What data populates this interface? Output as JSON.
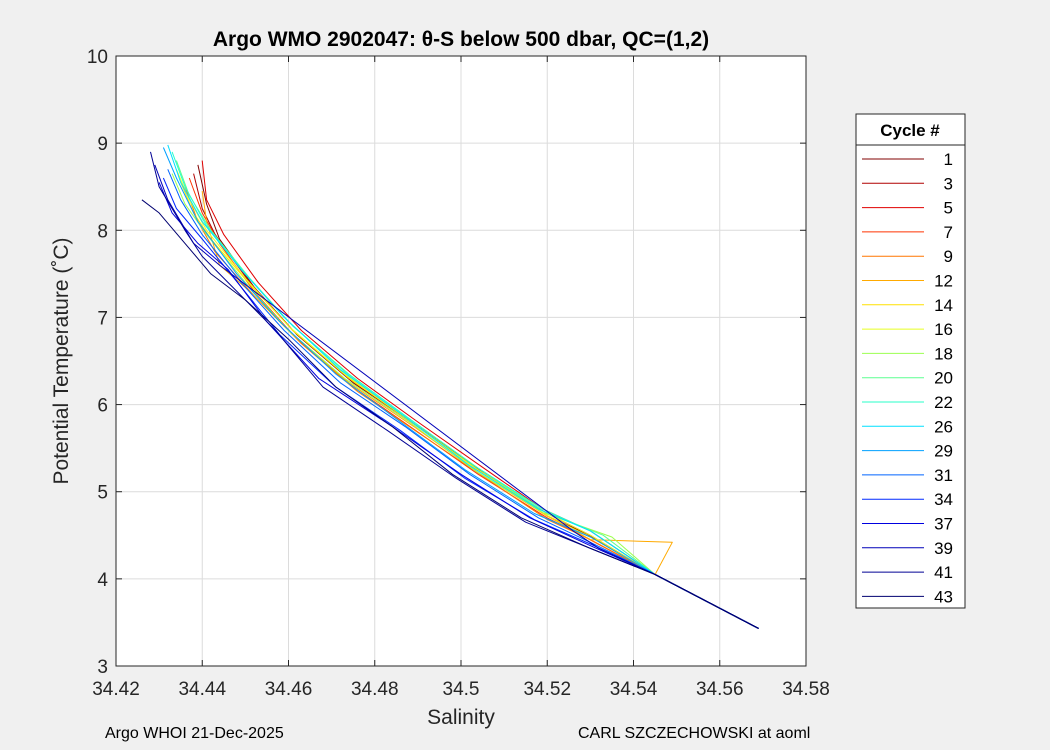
{
  "chart_data": {
    "type": "line",
    "title": "Argo WMO 2902047: θ-S below 500 dbar,  QC=(1,2)",
    "xlabel": "Salinity",
    "ylabel": "Potential Temperature (˚C)",
    "xlim": [
      34.42,
      34.58
    ],
    "ylim": [
      3,
      10
    ],
    "xticks": [
      "34.42",
      "34.44",
      "34.46",
      "34.48",
      "34.5",
      "34.52",
      "34.54",
      "34.56",
      "34.58"
    ],
    "yticks": [
      "3",
      "4",
      "5",
      "6",
      "7",
      "8",
      "9",
      "10"
    ],
    "grid": true,
    "legend": {
      "title": "Cycle #",
      "placement": "outside-right",
      "entries": [
        {
          "name": "1",
          "color": "#800000"
        },
        {
          "name": "3",
          "color": "#b00000"
        },
        {
          "name": "5",
          "color": "#e00000"
        },
        {
          "name": "7",
          "color": "#ff3300"
        },
        {
          "name": "9",
          "color": "#ff7700"
        },
        {
          "name": "12",
          "color": "#ffaa00"
        },
        {
          "name": "14",
          "color": "#ffe000"
        },
        {
          "name": "16",
          "color": "#e8ff20"
        },
        {
          "name": "18",
          "color": "#9cff50"
        },
        {
          "name": "20",
          "color": "#5cff90"
        },
        {
          "name": "22",
          "color": "#28ffc8"
        },
        {
          "name": "26",
          "color": "#00e0ff"
        },
        {
          "name": "29",
          "color": "#00a0ff"
        },
        {
          "name": "31",
          "color": "#0064ff"
        },
        {
          "name": "34",
          "color": "#0028ff"
        },
        {
          "name": "37",
          "color": "#0000e0"
        },
        {
          "name": "39",
          "color": "#0000b8"
        },
        {
          "name": "41",
          "color": "#000094"
        },
        {
          "name": "43",
          "color": "#000070"
        }
      ]
    },
    "series": [
      {
        "name": "1",
        "color": "#800000",
        "points": [
          [
            34.439,
            8.75
          ],
          [
            34.441,
            8.3
          ],
          [
            34.444,
            7.9
          ],
          [
            34.452,
            7.35
          ],
          [
            34.462,
            6.8
          ],
          [
            34.475,
            6.25
          ],
          [
            34.49,
            5.75
          ],
          [
            34.505,
            5.22
          ],
          [
            34.52,
            4.72
          ],
          [
            34.529,
            4.52
          ],
          [
            34.545,
            4.05
          ],
          [
            34.569,
            3.43
          ]
        ]
      },
      {
        "name": "3",
        "color": "#b00000",
        "points": [
          [
            34.438,
            8.65
          ],
          [
            34.44,
            8.25
          ],
          [
            34.443,
            7.95
          ],
          [
            34.451,
            7.4
          ],
          [
            34.461,
            6.85
          ],
          [
            34.474,
            6.3
          ],
          [
            34.489,
            5.78
          ],
          [
            34.504,
            5.25
          ],
          [
            34.52,
            4.75
          ],
          [
            34.53,
            4.5
          ],
          [
            34.545,
            4.05
          ],
          [
            34.569,
            3.43
          ]
        ]
      },
      {
        "name": "5",
        "color": "#e00000",
        "points": [
          [
            34.44,
            8.8
          ],
          [
            34.441,
            8.35
          ],
          [
            34.445,
            7.95
          ],
          [
            34.453,
            7.4
          ],
          [
            34.463,
            6.85
          ],
          [
            34.476,
            6.3
          ],
          [
            34.49,
            5.8
          ],
          [
            34.505,
            5.28
          ],
          [
            34.519,
            4.8
          ],
          [
            34.53,
            4.55
          ],
          [
            34.545,
            4.05
          ],
          [
            34.569,
            3.43
          ]
        ]
      },
      {
        "name": "7",
        "color": "#ff3300",
        "points": [
          [
            34.437,
            8.6
          ],
          [
            34.44,
            8.2
          ],
          [
            34.444,
            7.85
          ],
          [
            34.452,
            7.3
          ],
          [
            34.462,
            6.75
          ],
          [
            34.475,
            6.2
          ],
          [
            34.489,
            5.72
          ],
          [
            34.504,
            5.2
          ],
          [
            34.52,
            4.7
          ],
          [
            34.528,
            4.5
          ],
          [
            34.545,
            4.05
          ],
          [
            34.569,
            3.43
          ]
        ]
      },
      {
        "name": "9",
        "color": "#ff7700",
        "points": [
          [
            34.436,
            8.5
          ],
          [
            34.439,
            8.1
          ],
          [
            34.443,
            7.75
          ],
          [
            34.452,
            7.25
          ],
          [
            34.463,
            6.7
          ],
          [
            34.476,
            6.15
          ],
          [
            34.49,
            5.68
          ],
          [
            34.505,
            5.18
          ],
          [
            34.52,
            4.68
          ],
          [
            34.53,
            4.45
          ],
          [
            34.545,
            4.05
          ],
          [
            34.569,
            3.43
          ]
        ]
      },
      {
        "name": "12",
        "color": "#ffaa00",
        "points": [
          [
            34.44,
            8.45
          ],
          [
            34.441,
            8.1
          ],
          [
            34.444,
            7.6
          ],
          [
            34.451,
            7.3
          ],
          [
            34.461,
            6.8
          ],
          [
            34.474,
            6.25
          ],
          [
            34.489,
            5.75
          ],
          [
            34.504,
            5.22
          ],
          [
            34.52,
            4.72
          ],
          [
            34.53,
            4.45
          ],
          [
            34.549,
            4.42
          ],
          [
            34.545,
            4.05
          ],
          [
            34.569,
            3.43
          ]
        ]
      },
      {
        "name": "14",
        "color": "#ffe000",
        "points": [
          [
            34.435,
            8.55
          ],
          [
            34.438,
            8.2
          ],
          [
            34.442,
            7.9
          ],
          [
            34.451,
            7.38
          ],
          [
            34.461,
            6.85
          ],
          [
            34.474,
            6.3
          ],
          [
            34.489,
            5.78
          ],
          [
            34.504,
            5.25
          ],
          [
            34.519,
            4.75
          ],
          [
            34.53,
            4.48
          ],
          [
            34.545,
            4.05
          ],
          [
            34.569,
            3.43
          ]
        ]
      },
      {
        "name": "16",
        "color": "#e8ff20",
        "points": [
          [
            34.434,
            8.7
          ],
          [
            34.437,
            8.35
          ],
          [
            34.441,
            8.0
          ],
          [
            34.45,
            7.45
          ],
          [
            34.46,
            6.9
          ],
          [
            34.473,
            6.35
          ],
          [
            34.488,
            5.82
          ],
          [
            34.503,
            5.28
          ],
          [
            34.519,
            4.78
          ],
          [
            34.53,
            4.5
          ],
          [
            34.545,
            4.05
          ],
          [
            34.569,
            3.43
          ]
        ]
      },
      {
        "name": "18",
        "color": "#9cff50",
        "points": [
          [
            34.433,
            8.65
          ],
          [
            34.436,
            8.3
          ],
          [
            34.441,
            7.95
          ],
          [
            34.45,
            7.4
          ],
          [
            34.46,
            6.85
          ],
          [
            34.473,
            6.3
          ],
          [
            34.488,
            5.8
          ],
          [
            34.503,
            5.25
          ],
          [
            34.519,
            4.76
          ],
          [
            34.535,
            4.48
          ],
          [
            34.545,
            4.05
          ],
          [
            34.569,
            3.43
          ]
        ]
      },
      {
        "name": "20",
        "color": "#5cff90",
        "points": [
          [
            34.434,
            8.8
          ],
          [
            34.437,
            8.4
          ],
          [
            34.442,
            8.0
          ],
          [
            34.451,
            7.45
          ],
          [
            34.461,
            6.9
          ],
          [
            34.474,
            6.35
          ],
          [
            34.489,
            5.8
          ],
          [
            34.504,
            5.27
          ],
          [
            34.519,
            4.78
          ],
          [
            34.533,
            4.5
          ],
          [
            34.545,
            4.05
          ],
          [
            34.569,
            3.43
          ]
        ]
      },
      {
        "name": "22",
        "color": "#28ffc8",
        "points": [
          [
            34.433,
            8.9
          ],
          [
            34.436,
            8.5
          ],
          [
            34.441,
            8.05
          ],
          [
            34.45,
            7.5
          ],
          [
            34.46,
            6.95
          ],
          [
            34.473,
            6.38
          ],
          [
            34.488,
            5.84
          ],
          [
            34.503,
            5.3
          ],
          [
            34.519,
            4.8
          ],
          [
            34.53,
            4.55
          ],
          [
            34.545,
            4.05
          ],
          [
            34.569,
            3.43
          ]
        ]
      },
      {
        "name": "26",
        "color": "#00e0ff",
        "points": [
          [
            34.432,
            8.98
          ],
          [
            34.435,
            8.55
          ],
          [
            34.44,
            8.1
          ],
          [
            34.449,
            7.55
          ],
          [
            34.459,
            7.0
          ],
          [
            34.472,
            6.4
          ],
          [
            34.487,
            5.86
          ],
          [
            34.502,
            5.3
          ],
          [
            34.518,
            4.8
          ],
          [
            34.53,
            4.55
          ],
          [
            34.545,
            4.05
          ],
          [
            34.569,
            3.43
          ]
        ]
      },
      {
        "name": "29",
        "color": "#00a0ff",
        "points": [
          [
            34.431,
            8.95
          ],
          [
            34.434,
            8.6
          ],
          [
            34.439,
            8.1
          ],
          [
            34.448,
            7.5
          ],
          [
            34.458,
            6.95
          ],
          [
            34.471,
            6.35
          ],
          [
            34.486,
            5.8
          ],
          [
            34.501,
            5.25
          ],
          [
            34.517,
            4.75
          ],
          [
            34.53,
            4.48
          ],
          [
            34.545,
            4.05
          ],
          [
            34.569,
            3.43
          ]
        ]
      },
      {
        "name": "31",
        "color": "#0064ff",
        "points": [
          [
            34.432,
            8.7
          ],
          [
            34.435,
            8.35
          ],
          [
            34.44,
            7.95
          ],
          [
            34.449,
            7.4
          ],
          [
            34.459,
            6.85
          ],
          [
            34.472,
            6.25
          ],
          [
            34.487,
            5.75
          ],
          [
            34.502,
            5.2
          ],
          [
            34.518,
            4.7
          ],
          [
            34.53,
            4.42
          ],
          [
            34.545,
            4.05
          ],
          [
            34.569,
            3.43
          ]
        ]
      },
      {
        "name": "34",
        "color": "#0028ff",
        "points": [
          [
            34.431,
            8.6
          ],
          [
            34.434,
            8.25
          ],
          [
            34.44,
            7.9
          ],
          [
            34.449,
            7.35
          ],
          [
            34.458,
            6.8
          ],
          [
            34.471,
            6.2
          ],
          [
            34.486,
            5.7
          ],
          [
            34.501,
            5.15
          ],
          [
            34.517,
            4.68
          ],
          [
            34.53,
            4.4
          ],
          [
            34.545,
            4.05
          ],
          [
            34.569,
            3.43
          ]
        ]
      },
      {
        "name": "37",
        "color": "#0000e0",
        "points": [
          [
            34.43,
            8.55
          ],
          [
            34.433,
            8.2
          ],
          [
            34.439,
            7.85
          ],
          [
            34.446,
            7.55
          ],
          [
            34.455,
            6.95
          ],
          [
            34.467,
            6.3
          ],
          [
            34.484,
            5.75
          ],
          [
            34.5,
            5.2
          ],
          [
            34.516,
            4.7
          ],
          [
            34.53,
            4.38
          ],
          [
            34.545,
            4.05
          ],
          [
            34.569,
            3.43
          ]
        ]
      },
      {
        "name": "39",
        "color": "#0000b8",
        "points": [
          [
            34.429,
            8.75
          ],
          [
            34.432,
            8.35
          ],
          [
            34.438,
            7.85
          ],
          [
            34.444,
            7.6
          ],
          [
            34.526,
            4.55
          ],
          [
            34.532,
            4.35
          ],
          [
            34.545,
            4.05
          ],
          [
            34.569,
            3.43
          ]
        ]
      },
      {
        "name": "41",
        "color": "#000094",
        "points": [
          [
            34.428,
            8.9
          ],
          [
            34.43,
            8.5
          ],
          [
            34.436,
            8.0
          ],
          [
            34.44,
            7.7
          ],
          [
            34.447,
            7.35
          ],
          [
            34.457,
            6.85
          ],
          [
            34.468,
            6.2
          ],
          [
            34.483,
            5.7
          ],
          [
            34.499,
            5.15
          ],
          [
            34.515,
            4.65
          ],
          [
            34.53,
            4.35
          ],
          [
            34.545,
            4.05
          ],
          [
            34.569,
            3.43
          ]
        ]
      },
      {
        "name": "43",
        "color": "#000070",
        "points": [
          [
            34.426,
            8.35
          ],
          [
            34.43,
            8.2
          ],
          [
            34.436,
            7.85
          ],
          [
            34.442,
            7.5
          ],
          [
            34.45,
            7.2
          ],
          [
            34.46,
            6.75
          ],
          [
            34.471,
            6.2
          ],
          [
            34.484,
            5.75
          ],
          [
            34.498,
            5.2
          ],
          [
            34.514,
            4.7
          ],
          [
            34.53,
            4.35
          ],
          [
            34.545,
            4.05
          ],
          [
            34.569,
            3.43
          ]
        ]
      }
    ]
  },
  "footer": {
    "left": "Argo WHOI 21-Dec-2025",
    "right": "CARL SZCZECHOWSKI at aoml"
  }
}
